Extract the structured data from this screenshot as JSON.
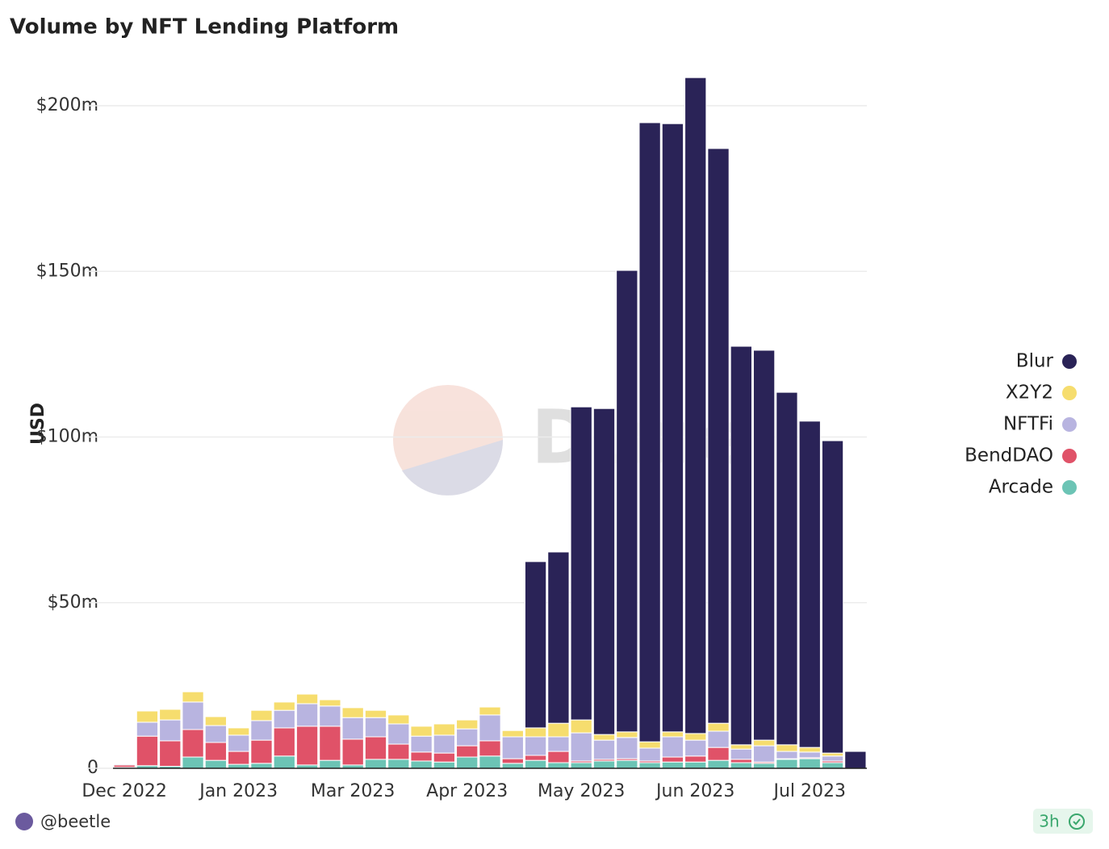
{
  "chart_data": {
    "type": "stacked_bar",
    "title": "Volume by NFT Lending Platform",
    "y_label": "USD",
    "watermark": "Dune",
    "author": "@beetle",
    "updated": "3h",
    "categories": [
      "Dec 2022",
      null,
      null,
      null,
      null,
      "Jan 2023",
      null,
      null,
      null,
      null,
      "Mar 2023",
      null,
      null,
      null,
      null,
      "Apr 2023",
      null,
      null,
      null,
      null,
      "May 2023",
      null,
      null,
      null,
      null,
      "Jun 2023",
      null,
      null,
      null,
      null,
      "Jul 2023",
      null,
      null
    ],
    "series": [
      {
        "name": "Blur",
        "color": "#2a2357",
        "values": [
          0,
          0,
          0,
          0,
          0,
          0,
          0,
          0,
          0,
          0,
          0,
          0,
          0,
          0,
          0,
          0,
          0,
          0,
          50.2,
          51.7,
          94.5,
          98.4,
          139.3,
          186.9,
          183.6,
          198,
          173.5,
          120.3,
          117.7,
          106.4,
          98.5,
          94.3,
          5.1
        ]
      },
      {
        "name": "X2Y2",
        "color": "#f6dd6e",
        "values": [
          0.2,
          3.4,
          3.2,
          3.1,
          2.7,
          2.2,
          3.1,
          2.5,
          2.9,
          1.9,
          3,
          2.2,
          2.7,
          3,
          3.4,
          2.7,
          2.4,
          1.9,
          2.7,
          4.1,
          3.9,
          1.7,
          1.7,
          1.9,
          1.5,
          2,
          2.4,
          1.3,
          1.7,
          2,
          1.4,
          0.9,
          0
        ]
      },
      {
        "name": "NFTFi",
        "color": "#b8b4e0",
        "values": [
          0.3,
          4.2,
          6.3,
          8.3,
          5.1,
          4.9,
          5.9,
          5.3,
          6.8,
          6.1,
          6.5,
          5.8,
          6.1,
          4.8,
          5.4,
          5.1,
          7.8,
          6.6,
          5.6,
          4.4,
          8.5,
          5.8,
          6.4,
          3.9,
          6.1,
          4.8,
          4.9,
          3.1,
          4.9,
          2.2,
          1.7,
          1.5,
          0
        ]
      },
      {
        "name": "BendDAO",
        "color": "#e05268",
        "values": [
          0.7,
          8.9,
          7.7,
          8.3,
          5.4,
          3.9,
          7,
          8.5,
          11.7,
          10.3,
          7.8,
          6.8,
          4.6,
          2.7,
          2.7,
          3.4,
          4.6,
          1.4,
          1.5,
          3.4,
          0.5,
          0.5,
          0.5,
          0.5,
          1.5,
          1.8,
          3.9,
          1,
          0.4,
          0.2,
          0.3,
          0.5,
          0
        ]
      },
      {
        "name": "Arcade",
        "color": "#6cc4b5",
        "values": [
          0.3,
          0.8,
          0.6,
          3.4,
          2.4,
          1.2,
          1.5,
          3.7,
          1,
          2.4,
          1,
          2.7,
          2.7,
          2.2,
          1.9,
          3.4,
          3.7,
          1.5,
          2.4,
          1.7,
          1.7,
          2.2,
          2.4,
          1.7,
          1.9,
          1.9,
          2.4,
          1.7,
          1.5,
          2.7,
          2.9,
          1.7,
          0
        ]
      }
    ],
    "ylim": [
      0,
      210
    ],
    "yticks": [
      0,
      {
        "value": 50,
        "label": "$50m"
      },
      {
        "value": 100,
        "label": "$100m"
      },
      {
        "value": 150,
        "label": "$150m"
      },
      {
        "value": 200,
        "label": "$200m"
      }
    ],
    "grid": true,
    "legend": "right"
  }
}
